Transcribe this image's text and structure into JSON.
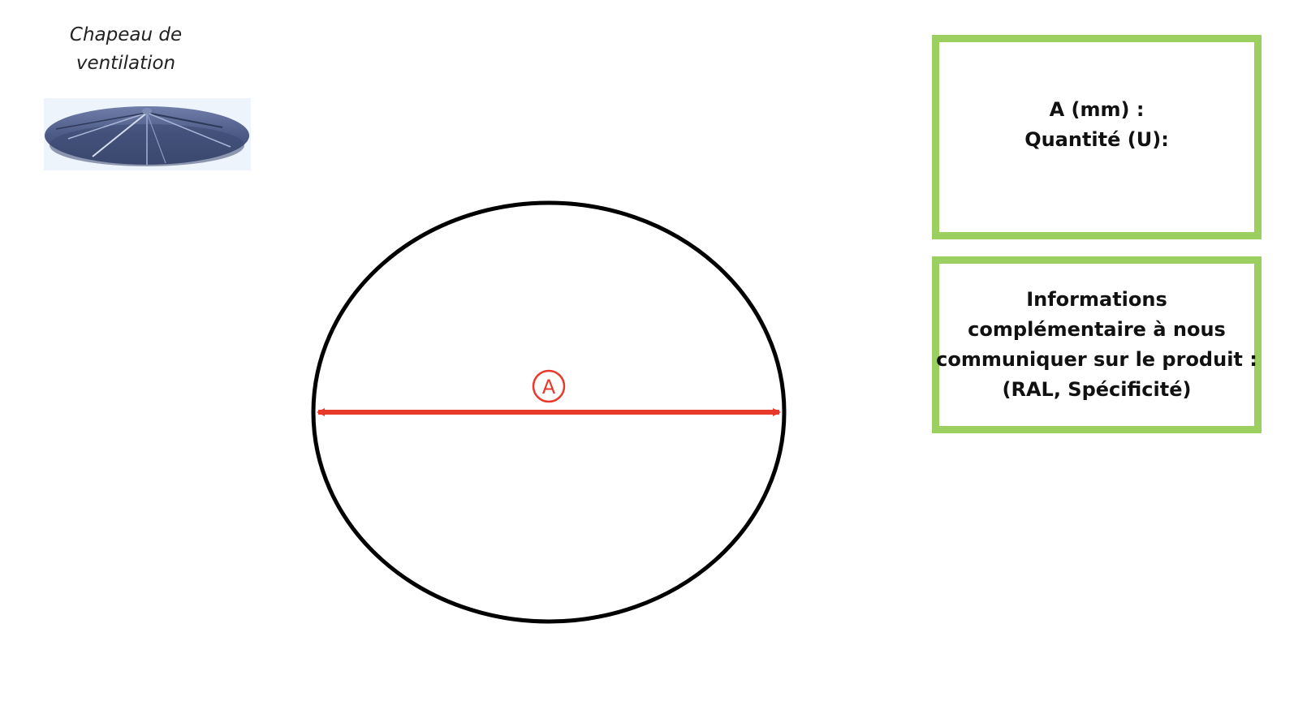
{
  "product": {
    "title_line1": "Chapeau de",
    "title_line2": "ventilation"
  },
  "diagram": {
    "dimension_label": "A",
    "outline_color": "#000000",
    "dimension_color": "#e8392b"
  },
  "boxes": {
    "dimensions": {
      "line1": "A (mm) :",
      "line2": "Quantité (U):"
    },
    "info": {
      "line1": "Informations",
      "line2": "complémentaire à nous",
      "line3": "communiquer sur le produit :",
      "line4": "(RAL, Spécificité)"
    },
    "border_color": "#9bcf60"
  }
}
